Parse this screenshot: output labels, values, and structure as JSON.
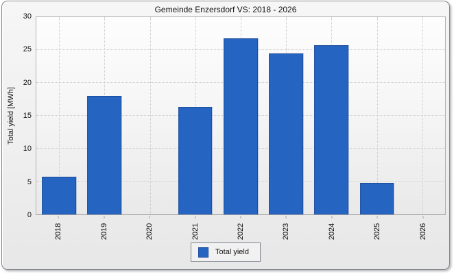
{
  "window": {
    "background_color": "#ffffff",
    "panel_border_color": "#7e8489",
    "panel_background_top": "#f6f6f6",
    "panel_background_bottom": "#e7e7e7"
  },
  "chart_data": {
    "type": "bar",
    "title": "Gemeinde Enzersdorf VS: 2018 - 2026",
    "xlabel": "",
    "ylabel": "Total yield [MWh]",
    "categories": [
      "2018",
      "2019",
      "2020",
      "2021",
      "2022",
      "2023",
      "2024",
      "2025",
      "2026"
    ],
    "series": [
      {
        "name": "Total yield",
        "values": [
          5.7,
          18.0,
          0,
          16.4,
          26.8,
          24.5,
          25.7,
          4.8,
          0
        ]
      }
    ],
    "ylim": [
      0,
      30
    ],
    "yticks": [
      0,
      5,
      10,
      15,
      20,
      25,
      30
    ],
    "grid": "dotted horizontal and vertical gridlines",
    "x_label_rotation_deg": -90,
    "legend": {
      "position": "bottom-center",
      "entries": [
        "Total yield"
      ]
    },
    "colors": {
      "bar_fill": "#2565c1",
      "bar_border": "#1a4a99",
      "gridline": "#c9c9c9",
      "plot_border": "#b2b2b2",
      "text": "#111111"
    }
  }
}
